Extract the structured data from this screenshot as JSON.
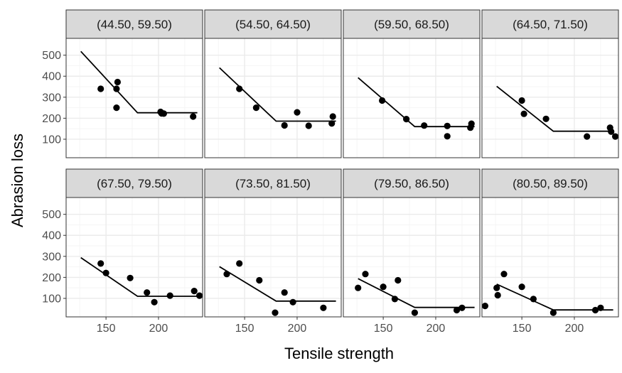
{
  "chart_data": {
    "type": "scatter",
    "xlabel": "Tensile strength",
    "ylabel": "Abrasion loss",
    "xlim": [
      112,
      242
    ],
    "ylim": [
      12,
      580
    ],
    "x_ticks": [
      150,
      200
    ],
    "y_ticks": [
      100,
      200,
      300,
      400,
      500
    ],
    "grid": true,
    "colors": {
      "strip_fill": "#d9d9d9",
      "panel_border": "#333333",
      "grid_major": "#ebebeb",
      "grid_minor": "#f5f5f5",
      "point": "#000000",
      "line": "#000000"
    },
    "panels": [
      {
        "label": "(44.50, 59.50)",
        "points": [
          [
            145,
            340
          ],
          [
            160,
            340
          ],
          [
            161,
            372
          ],
          [
            160,
            250
          ],
          [
            202,
            230
          ],
          [
            203,
            223
          ],
          [
            205,
            222
          ],
          [
            233,
            208
          ]
        ],
        "line": [
          [
            126,
            518
          ],
          [
            180,
            226
          ],
          [
            237,
            226
          ]
        ]
      },
      {
        "label": "(54.50, 64.50)",
        "points": [
          [
            145,
            340
          ],
          [
            161,
            250
          ],
          [
            188,
            166
          ],
          [
            200,
            228
          ],
          [
            211,
            164
          ],
          [
            233,
            175
          ],
          [
            234,
            208
          ]
        ],
        "line": [
          [
            126,
            440
          ],
          [
            180,
            186
          ],
          [
            237,
            186
          ]
        ]
      },
      {
        "label": "(59.50, 68.50)",
        "points": [
          [
            149,
            284
          ],
          [
            172,
            196
          ],
          [
            189,
            165
          ],
          [
            211,
            163
          ],
          [
            211,
            114
          ],
          [
            234,
            174
          ],
          [
            233,
            155
          ]
        ],
        "line": [
          [
            126,
            393
          ],
          [
            180,
            160
          ],
          [
            237,
            160
          ]
        ]
      },
      {
        "label": "(64.50, 71.50)",
        "points": [
          [
            150,
            284
          ],
          [
            152,
            221
          ],
          [
            173,
            197
          ],
          [
            212,
            113
          ],
          [
            234,
            155
          ],
          [
            235,
            136
          ],
          [
            239,
            113
          ]
        ],
        "line": [
          [
            126,
            352
          ],
          [
            180,
            138
          ],
          [
            237,
            138
          ]
        ]
      },
      {
        "label": "(67.50, 79.50)",
        "points": [
          [
            145,
            266
          ],
          [
            150,
            221
          ],
          [
            173,
            197
          ],
          [
            189,
            128
          ],
          [
            196,
            82
          ],
          [
            211,
            113
          ],
          [
            234,
            135
          ],
          [
            239,
            113
          ]
        ],
        "line": [
          [
            126,
            294
          ],
          [
            180,
            110
          ],
          [
            237,
            110
          ]
        ]
      },
      {
        "label": "(73.50, 81.50)",
        "points": [
          [
            133,
            216
          ],
          [
            145,
            266
          ],
          [
            164,
            186
          ],
          [
            179,
            32
          ],
          [
            188,
            128
          ],
          [
            196,
            82
          ],
          [
            225,
            55
          ]
        ],
        "line": [
          [
            126,
            251
          ],
          [
            180,
            87
          ],
          [
            237,
            87
          ]
        ]
      },
      {
        "label": "(79.50, 86.50)",
        "points": [
          [
            126,
            150
          ],
          [
            133,
            216
          ],
          [
            150,
            155
          ],
          [
            161,
            97
          ],
          [
            164,
            186
          ],
          [
            180,
            32
          ],
          [
            220,
            44
          ],
          [
            225,
            55
          ]
        ],
        "line": [
          [
            126,
            194
          ],
          [
            180,
            57
          ],
          [
            237,
            57
          ]
        ]
      },
      {
        "label": "(80.50, 89.50)",
        "points": [
          [
            115,
            64
          ],
          [
            126,
            150
          ],
          [
            127,
            115
          ],
          [
            133,
            216
          ],
          [
            150,
            155
          ],
          [
            161,
            97
          ],
          [
            180,
            32
          ],
          [
            220,
            44
          ],
          [
            225,
            55
          ]
        ],
        "line": [
          [
            126,
            168
          ],
          [
            180,
            45
          ],
          [
            237,
            45
          ]
        ]
      }
    ]
  }
}
